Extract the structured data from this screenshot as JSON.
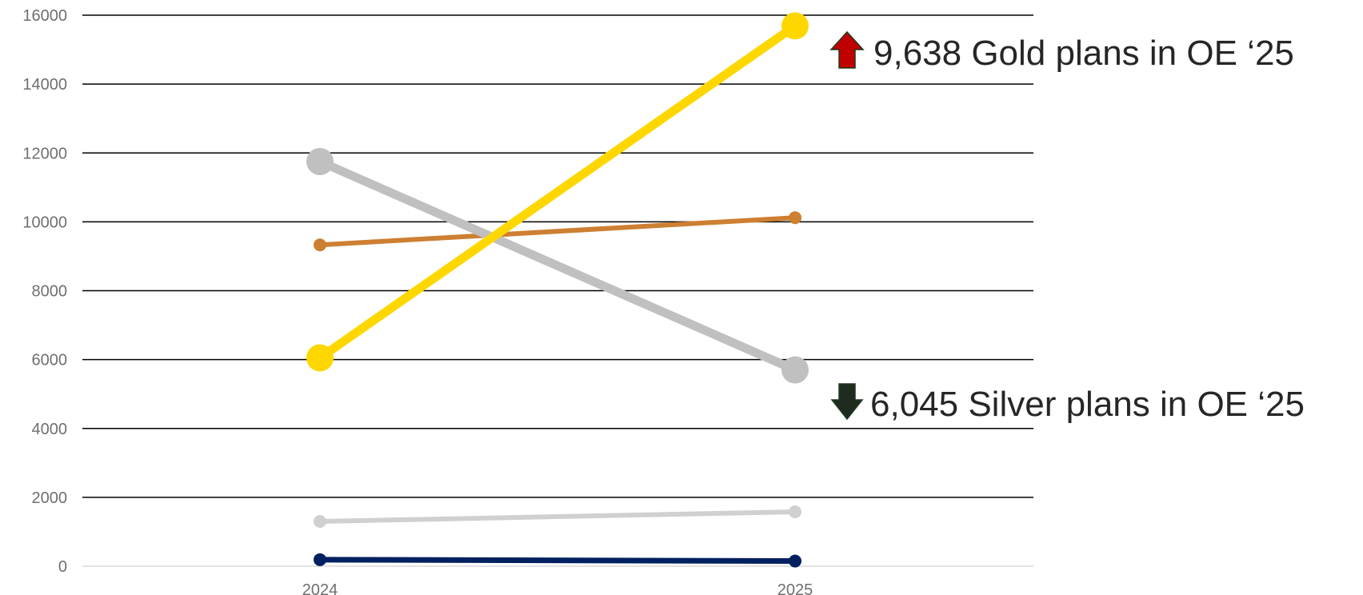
{
  "chart_data": {
    "type": "line",
    "x": [
      "2024",
      "2025"
    ],
    "ylim": [
      0,
      16000
    ],
    "yticks": [
      0,
      2000,
      4000,
      6000,
      8000,
      10000,
      12000,
      14000,
      16000
    ],
    "grid": true,
    "series": [
      {
        "color": "#d0d0d0",
        "values": [
          1300,
          1580
        ]
      },
      {
        "color": "#cd7f32",
        "values": [
          9330,
          10120
        ]
      },
      {
        "color": "#c0c0c0",
        "values": [
          11750,
          5700
        ]
      },
      {
        "color": "#ffd700",
        "values": [
          6050,
          15690
        ]
      },
      {
        "color": "#002060",
        "values": [
          190,
          150
        ]
      }
    ],
    "annotations": [
      {
        "text": "9,638 Gold plans in OE ‘25",
        "direction": "up",
        "arrow_color": "#c00000"
      },
      {
        "text": "6,045 Silver plans in OE ‘25",
        "direction": "down",
        "arrow_color": "#1e2b1e"
      }
    ]
  }
}
